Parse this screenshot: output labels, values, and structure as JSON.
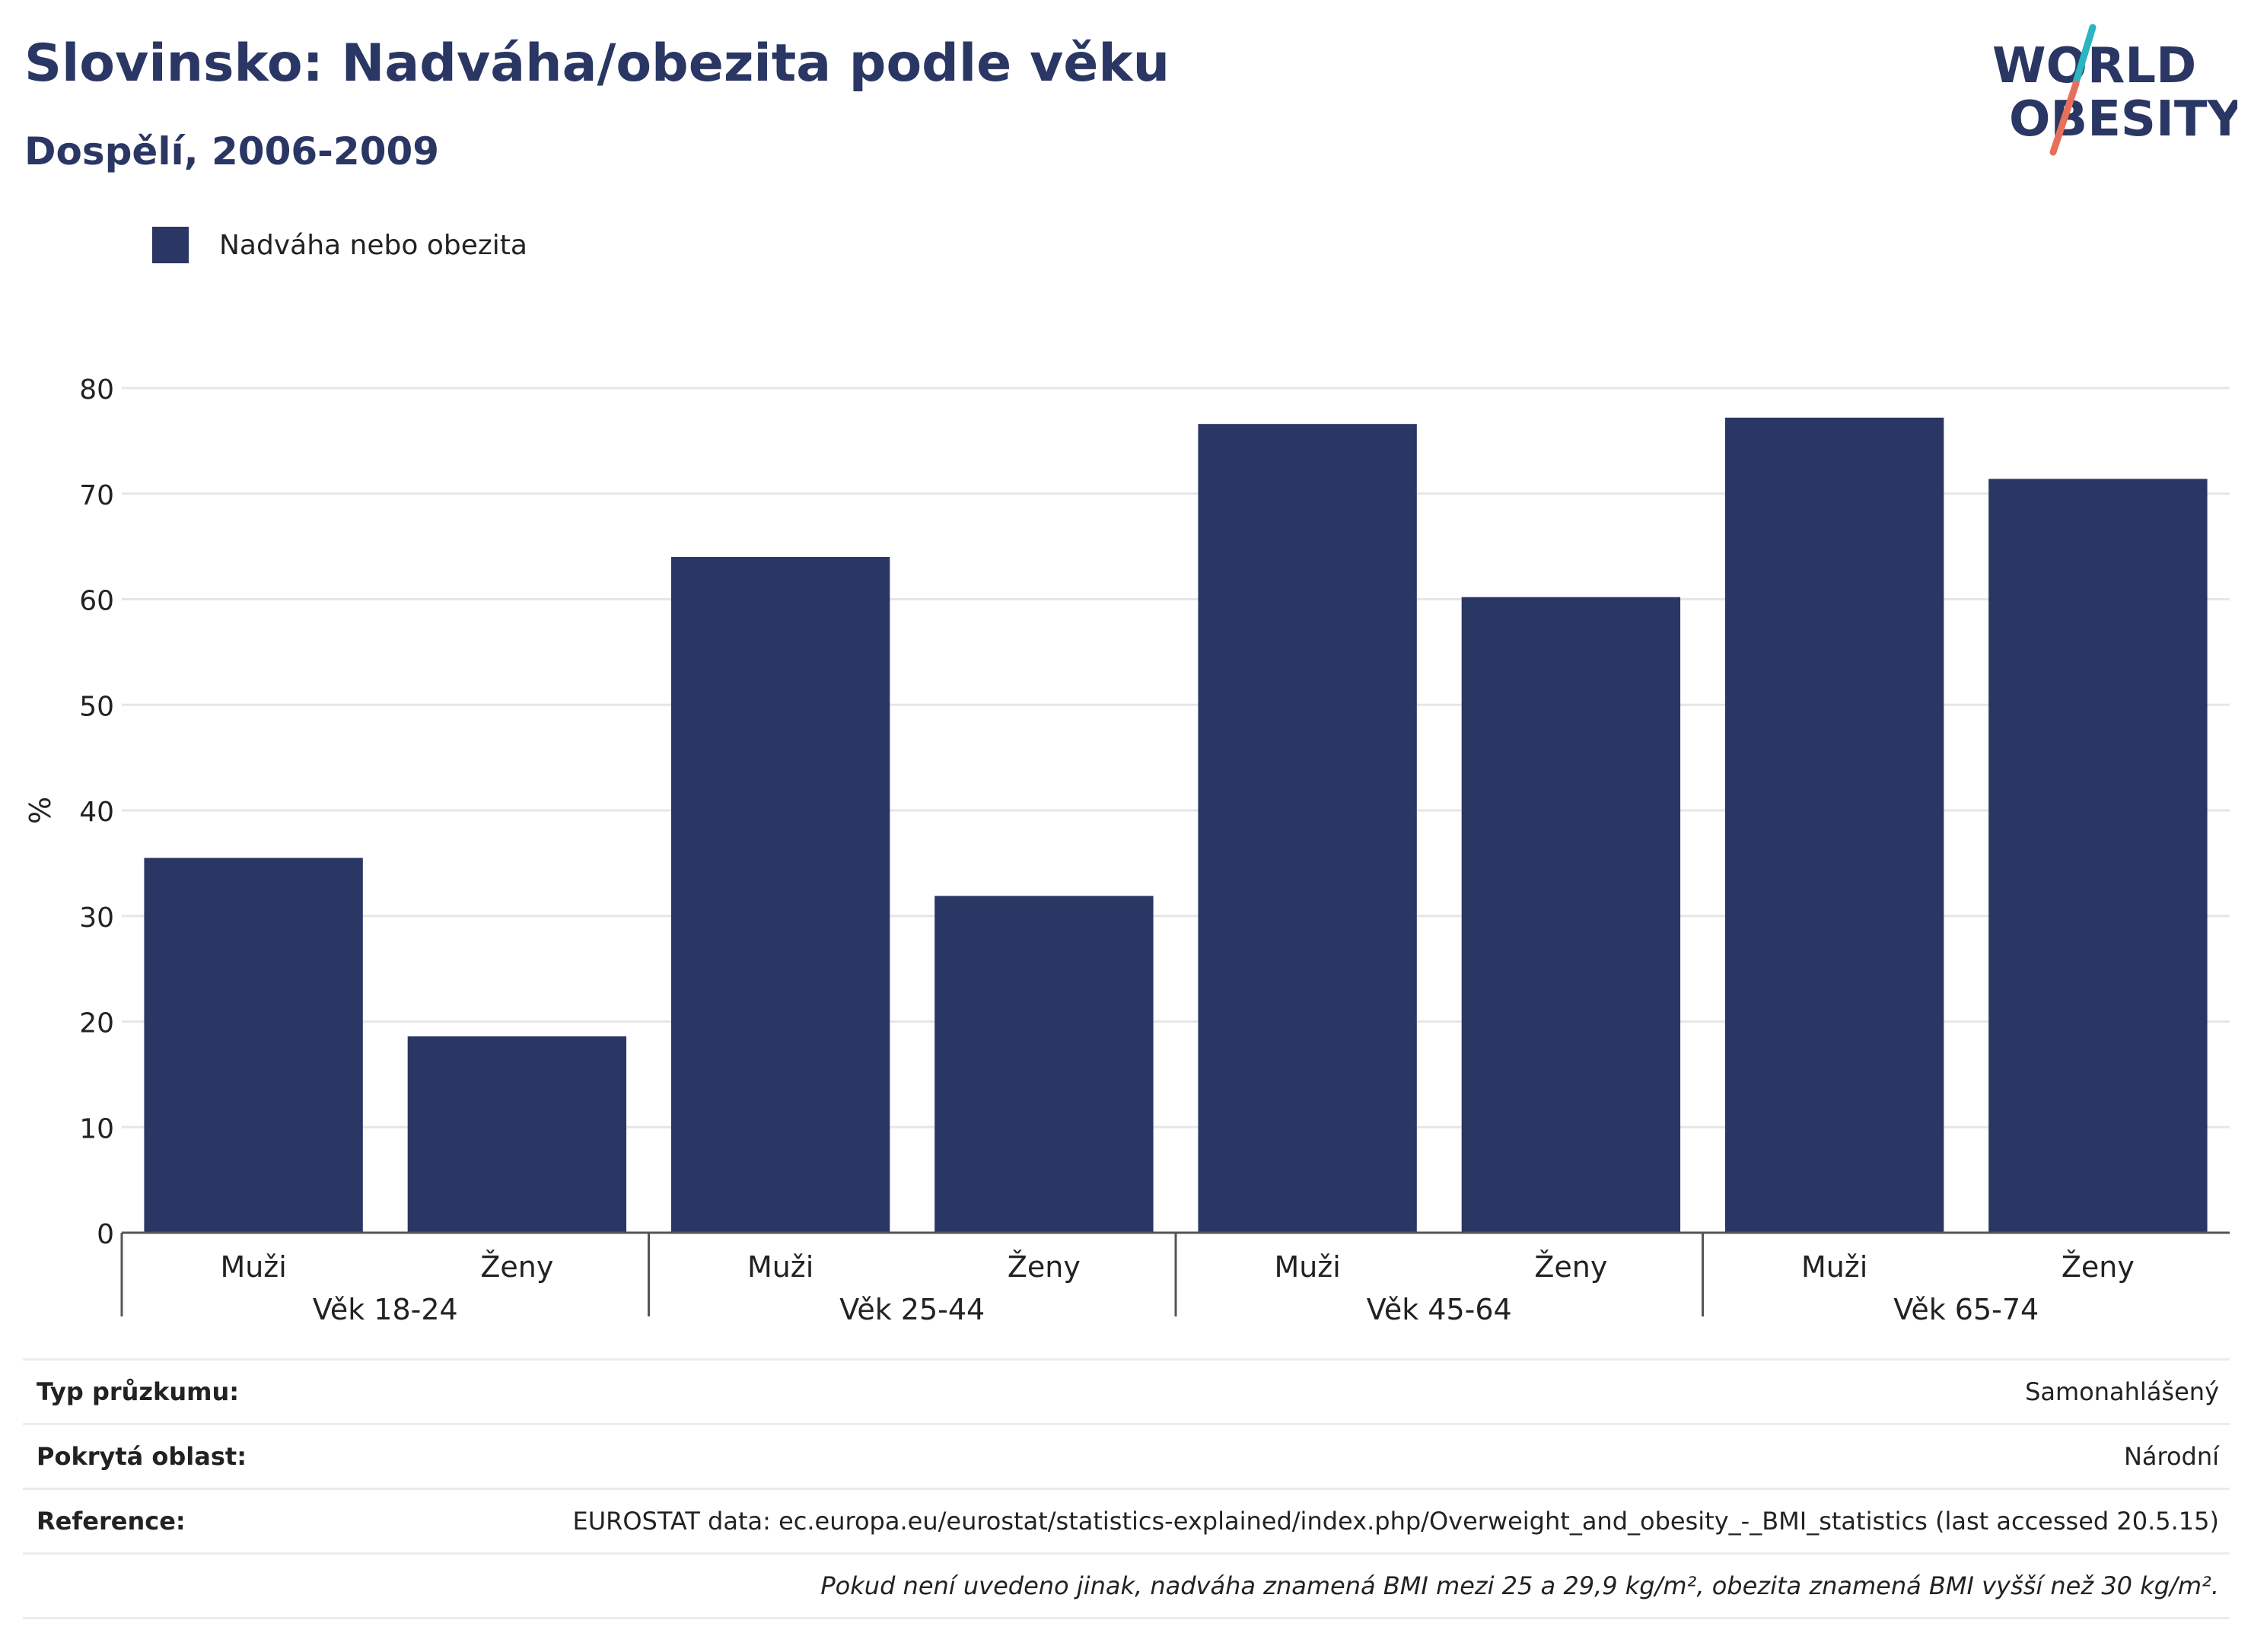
{
  "header": {
    "title": "Slovinsko: Nadváha/obezita podle věku",
    "subtitle": "Dospělí, 2006-2009"
  },
  "logo": {
    "line1": "WORLD",
    "line2": "OBESITY",
    "name": "world-obesity-logo"
  },
  "colors": {
    "bar": "#2a3663",
    "text": "#2a3663",
    "logo_teal": "#2bb4c1",
    "logo_coral": "#e8705b"
  },
  "chart_data": {
    "type": "bar",
    "legend": {
      "label": "Nadváha nebo obezita",
      "placement": "top-left"
    },
    "ylabel": "%",
    "ylim": [
      0,
      80
    ],
    "yticks": [
      0,
      10,
      20,
      30,
      40,
      50,
      60,
      70,
      80
    ],
    "grid": true,
    "groups": [
      {
        "label": "Věk 18-24",
        "categories": [
          "Muži",
          "Ženy"
        ],
        "values": [
          35.5,
          18.6
        ]
      },
      {
        "label": "Věk 25-44",
        "categories": [
          "Muži",
          "Ženy"
        ],
        "values": [
          64.0,
          31.9
        ]
      },
      {
        "label": "Věk 45-64",
        "categories": [
          "Muži",
          "Ženy"
        ],
        "values": [
          76.6,
          60.2
        ]
      },
      {
        "label": "Věk 65-74",
        "categories": [
          "Muži",
          "Ženy"
        ],
        "values": [
          77.2,
          71.4
        ]
      }
    ]
  },
  "info": {
    "rows": [
      {
        "key": "Typ průzkumu:",
        "value": "Samonahlášený"
      },
      {
        "key": "Pokrytá oblast:",
        "value": "Národní"
      },
      {
        "key": "Reference:",
        "value": "EUROSTAT data: ec.europa.eu/eurostat/statistics-explained/index.php/Overweight_and_obesity_-_BMI_statistics (last accessed 20.5.15)"
      }
    ],
    "note": "Pokud není uvedeno jinak, nadváha znamená BMI mezi 25 a 29,9 kg/m², obezita znamená BMI vyšší než 30 kg/m²."
  }
}
